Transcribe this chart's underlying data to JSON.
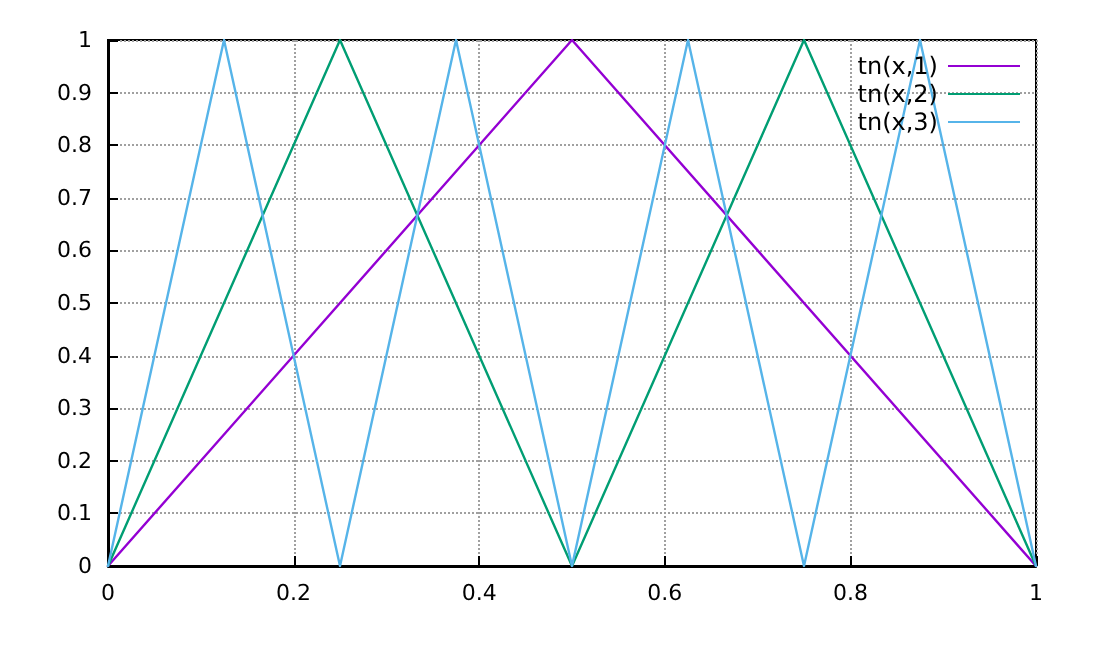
{
  "chart_data": {
    "type": "line",
    "xlim": [
      0,
      1
    ],
    "xticks": [
      0,
      0.2,
      0.4,
      0.6,
      0.8,
      1
    ],
    "ylim": [
      0,
      1
    ],
    "yticks": [
      0,
      0.1,
      0.2,
      0.3,
      0.4,
      0.5,
      0.6,
      0.7,
      0.8,
      0.9,
      1
    ],
    "grid": true,
    "legend": "top right",
    "marker": "none",
    "line_style": "solid",
    "series": [
      {
        "name": "tn(x,1)",
        "color": "#9400d3",
        "x": [
          0,
          0.5,
          1
        ],
        "values": [
          0,
          1,
          0
        ]
      },
      {
        "name": "tn(x,2)",
        "color": "#009e73",
        "x": [
          0,
          0.25,
          0.5,
          0.75,
          1
        ],
        "values": [
          0,
          1,
          0,
          1,
          0
        ]
      },
      {
        "name": "tn(x,3)",
        "color": "#56b4e9",
        "x": [
          0,
          0.125,
          0.25,
          0.375,
          0.5,
          0.625,
          0.75,
          0.875,
          1
        ],
        "values": [
          0,
          1,
          0,
          1,
          0,
          1,
          0,
          1,
          0
        ]
      }
    ]
  }
}
